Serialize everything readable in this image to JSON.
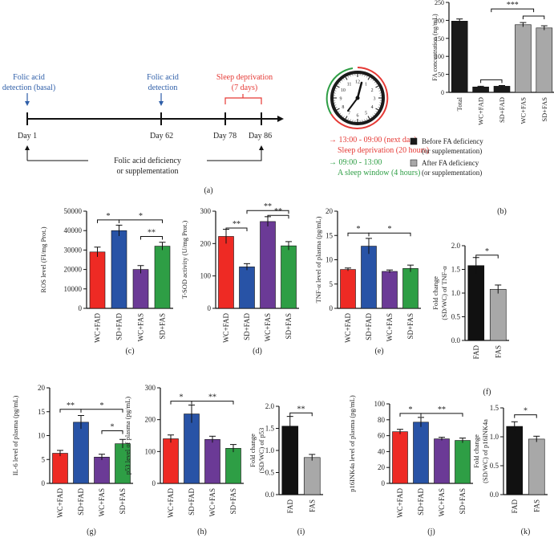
{
  "timeline": {
    "days": [
      "Day 1",
      "Day 62",
      "Day 78",
      "Day 86"
    ],
    "day_numbers": [
      1,
      62,
      78,
      86
    ],
    "basal_label_line1": "Folic acid",
    "basal_label_line2": "detection (basal)",
    "detection_label_line1": "Folic acid",
    "detection_label_line2": "detection",
    "sleep_dep_line1": "Sleep deprivation",
    "sleep_dep_line2": "(7 days)",
    "deficiency_line1": "Folic acid deficiency",
    "deficiency_line2": "or supplementation",
    "schedule_line1": "13:00 - 09:00 (next day)",
    "schedule_line2": "Sleep deprivation (20 hours)",
    "schedule_line3": "09:00 - 13:00",
    "schedule_line4": "A sleep window (4 hours)",
    "panel_label": "(a)",
    "clock_icon": "clock-icon",
    "colors": {
      "blue": "#2e5ea8",
      "red": "#e53935",
      "green": "#2e9e45"
    }
  },
  "colors": {
    "WC+FAD": "#ee2a24",
    "SD+FAD": "#2853a6",
    "WC+FAS": "#6b3a96",
    "SD+FAS": "#2e9e45",
    "FAD": "#111111",
    "FAS": "#a8a8a8",
    "Total": "#1a1a1a",
    "before": "#1a1a1a",
    "after": "#a8a8a8"
  },
  "chart_data": [
    {
      "id": "b",
      "type": "bar",
      "panel_label": "(b)",
      "categories": [
        "Total",
        "WC+FAD",
        "SD+FAD",
        "WC+FAS",
        "SD+FAS"
      ],
      "values": [
        198,
        15,
        17,
        188,
        179
      ],
      "errors": [
        6,
        2,
        2,
        6,
        6
      ],
      "color_keys": [
        "Total",
        "before",
        "before",
        "after",
        "after"
      ],
      "ylabel": "FA concentration (ng/mL)",
      "ylim": [
        0,
        250
      ],
      "yticks": [
        0,
        50,
        100,
        150,
        200,
        250
      ],
      "significance": [
        {
          "label": "***",
          "from": 1.5,
          "to": 3.5,
          "level": 232
        }
      ],
      "brackets_plain": [
        {
          "from": 1,
          "to": 2,
          "level": 35
        },
        {
          "from": 3,
          "to": 4,
          "level": 212
        }
      ],
      "legend": [
        {
          "key": "before",
          "line1": "Before FA deficiency",
          "line2": "(or supplementation)"
        },
        {
          "key": "after",
          "line1": "After FA deficiency",
          "line2": "(or supplementation)"
        }
      ]
    },
    {
      "id": "c",
      "type": "bar",
      "panel_label": "(c)",
      "categories": [
        "WC+FAD",
        "SD+FAD",
        "WC+FAS",
        "SD+FAS"
      ],
      "values": [
        29000,
        40000,
        20000,
        32000
      ],
      "errors": [
        2500,
        2800,
        2000,
        2000
      ],
      "ylabel": "ROS level (FI/mg Prot.)",
      "ylim": [
        0,
        50000
      ],
      "yticks": [
        0,
        10000,
        20000,
        30000,
        40000,
        50000
      ],
      "significance": [
        {
          "label": "*",
          "from": 0,
          "to": 1,
          "level": 45500
        },
        {
          "label": "*",
          "from": 1,
          "to": 3,
          "level": 45500
        },
        {
          "label": "**",
          "from": 2,
          "to": 3,
          "level": 37000
        }
      ]
    },
    {
      "id": "d",
      "type": "bar",
      "panel_label": "(d)",
      "categories": [
        "WC+FAD",
        "SD+FAD",
        "WC+FAS",
        "SD+FAS"
      ],
      "values": [
        222,
        128,
        268,
        193
      ],
      "errors": [
        22,
        10,
        15,
        13
      ],
      "ylabel": "T-SOD activity (U/mg Prot.)",
      "ylim": [
        0,
        300
      ],
      "yticks": [
        0,
        100,
        200,
        300
      ],
      "significance": [
        {
          "label": "**",
          "from": 0,
          "to": 1,
          "level": 248
        },
        {
          "label": "**",
          "from": 1,
          "to": 3,
          "level": 302
        },
        {
          "label": "**",
          "from": 2,
          "to": 3,
          "level": 287
        }
      ]
    },
    {
      "id": "e",
      "type": "bar",
      "panel_label": "(e)",
      "categories": [
        "WC+FAD",
        "SD+FAD",
        "WC+FAS",
        "SD+FAS"
      ],
      "values": [
        8.0,
        12.8,
        7.6,
        8.2
      ],
      "errors": [
        0.3,
        1.6,
        0.3,
        0.7
      ],
      "ylabel": "TNF-α level of plasma (pg/mL)",
      "ylim": [
        0,
        20
      ],
      "yticks": [
        0,
        5,
        10,
        15,
        20
      ],
      "significance": [
        {
          "label": "*",
          "from": 0,
          "to": 1,
          "level": 15.5
        },
        {
          "label": "*",
          "from": 1,
          "to": 3,
          "level": 15.5
        }
      ]
    },
    {
      "id": "f",
      "type": "bar",
      "panel_label": "(f)",
      "categories": [
        "FAD",
        "FAS"
      ],
      "values": [
        1.58,
        1.08
      ],
      "errors": [
        0.17,
        0.09
      ],
      "ylabel_line1": "Fold change",
      "ylabel_line2": "(SD/WC) of TNF-α",
      "ylim": [
        0,
        2.0
      ],
      "yticks": [
        0.0,
        0.5,
        1.0,
        1.5,
        2.0
      ],
      "significance": [
        {
          "label": "*",
          "from": 0,
          "to": 1,
          "level": 1.8
        }
      ]
    },
    {
      "id": "g",
      "type": "bar",
      "panel_label": "(g)",
      "categories": [
        "WC+FAD",
        "SD+FAD",
        "WC+FAS",
        "SD+FAS"
      ],
      "values": [
        6.3,
        12.8,
        5.5,
        8.3
      ],
      "errors": [
        0.6,
        1.4,
        0.6,
        0.9
      ],
      "ylabel": "IL-6 level of plasma (pg/mL)",
      "ylim": [
        0,
        20
      ],
      "yticks": [
        0,
        5,
        10,
        15,
        20
      ],
      "significance": [
        {
          "label": "**",
          "from": 0,
          "to": 1,
          "level": 15.5
        },
        {
          "label": "*",
          "from": 1,
          "to": 3,
          "level": 15.5
        },
        {
          "label": "*",
          "from": 2,
          "to": 3,
          "level": 11
        }
      ]
    },
    {
      "id": "h",
      "type": "bar",
      "panel_label": "(h)",
      "categories": [
        "WC+FAD",
        "SD+FAD",
        "WC+FAS",
        "SD+FAS"
      ],
      "values": [
        140,
        218,
        138,
        110
      ],
      "errors": [
        12,
        28,
        10,
        12
      ],
      "ylabel": "p53 level of plasma (pg/mL)",
      "ylim": [
        0,
        300
      ],
      "yticks": [
        0,
        100,
        200,
        300
      ],
      "significance": [
        {
          "label": "*",
          "from": 0,
          "to": 1,
          "level": 258
        },
        {
          "label": "**",
          "from": 1,
          "to": 3,
          "level": 258
        }
      ]
    },
    {
      "id": "i",
      "type": "bar",
      "panel_label": "(i)",
      "categories": [
        "FAD",
        "FAS"
      ],
      "values": [
        1.55,
        0.84
      ],
      "errors": [
        0.22,
        0.07
      ],
      "ylabel_line1": "Fold change",
      "ylabel_line2": "(SD/WC) of p53",
      "ylim": [
        0,
        2.0
      ],
      "yticks": [
        0.0,
        0.5,
        1.0,
        1.5,
        2.0
      ],
      "significance": [
        {
          "label": "**",
          "from": 0,
          "to": 1,
          "level": 1.85
        }
      ]
    },
    {
      "id": "j",
      "type": "bar",
      "panel_label": "(j)",
      "categories": [
        "WC+FAD",
        "SD+FAD",
        "WC+FAS",
        "SD+FAS"
      ],
      "values": [
        65,
        77,
        56,
        54
      ],
      "errors": [
        3,
        6,
        2,
        3
      ],
      "ylabel": "p16INK4a level of plasma (pg/mL)",
      "ylim": [
        0,
        100
      ],
      "yticks": [
        0,
        20,
        40,
        60,
        80,
        100
      ],
      "significance": [
        {
          "label": "*",
          "from": 0,
          "to": 1,
          "level": 88
        },
        {
          "label": "**",
          "from": 1,
          "to": 3,
          "level": 88
        }
      ]
    },
    {
      "id": "k",
      "type": "bar",
      "panel_label": "(k)",
      "categories": [
        "FAD",
        "FAS"
      ],
      "values": [
        1.18,
        0.96
      ],
      "errors": [
        0.08,
        0.05
      ],
      "ylabel_line1": "Fold change",
      "ylabel_line2": "(SD/WC) of p16INK4a",
      "ylim": [
        0,
        1.5
      ],
      "yticks": [
        0.0,
        0.5,
        1.0,
        1.5
      ],
      "significance": [
        {
          "label": "*",
          "from": 0,
          "to": 1,
          "level": 1.38
        }
      ]
    }
  ]
}
